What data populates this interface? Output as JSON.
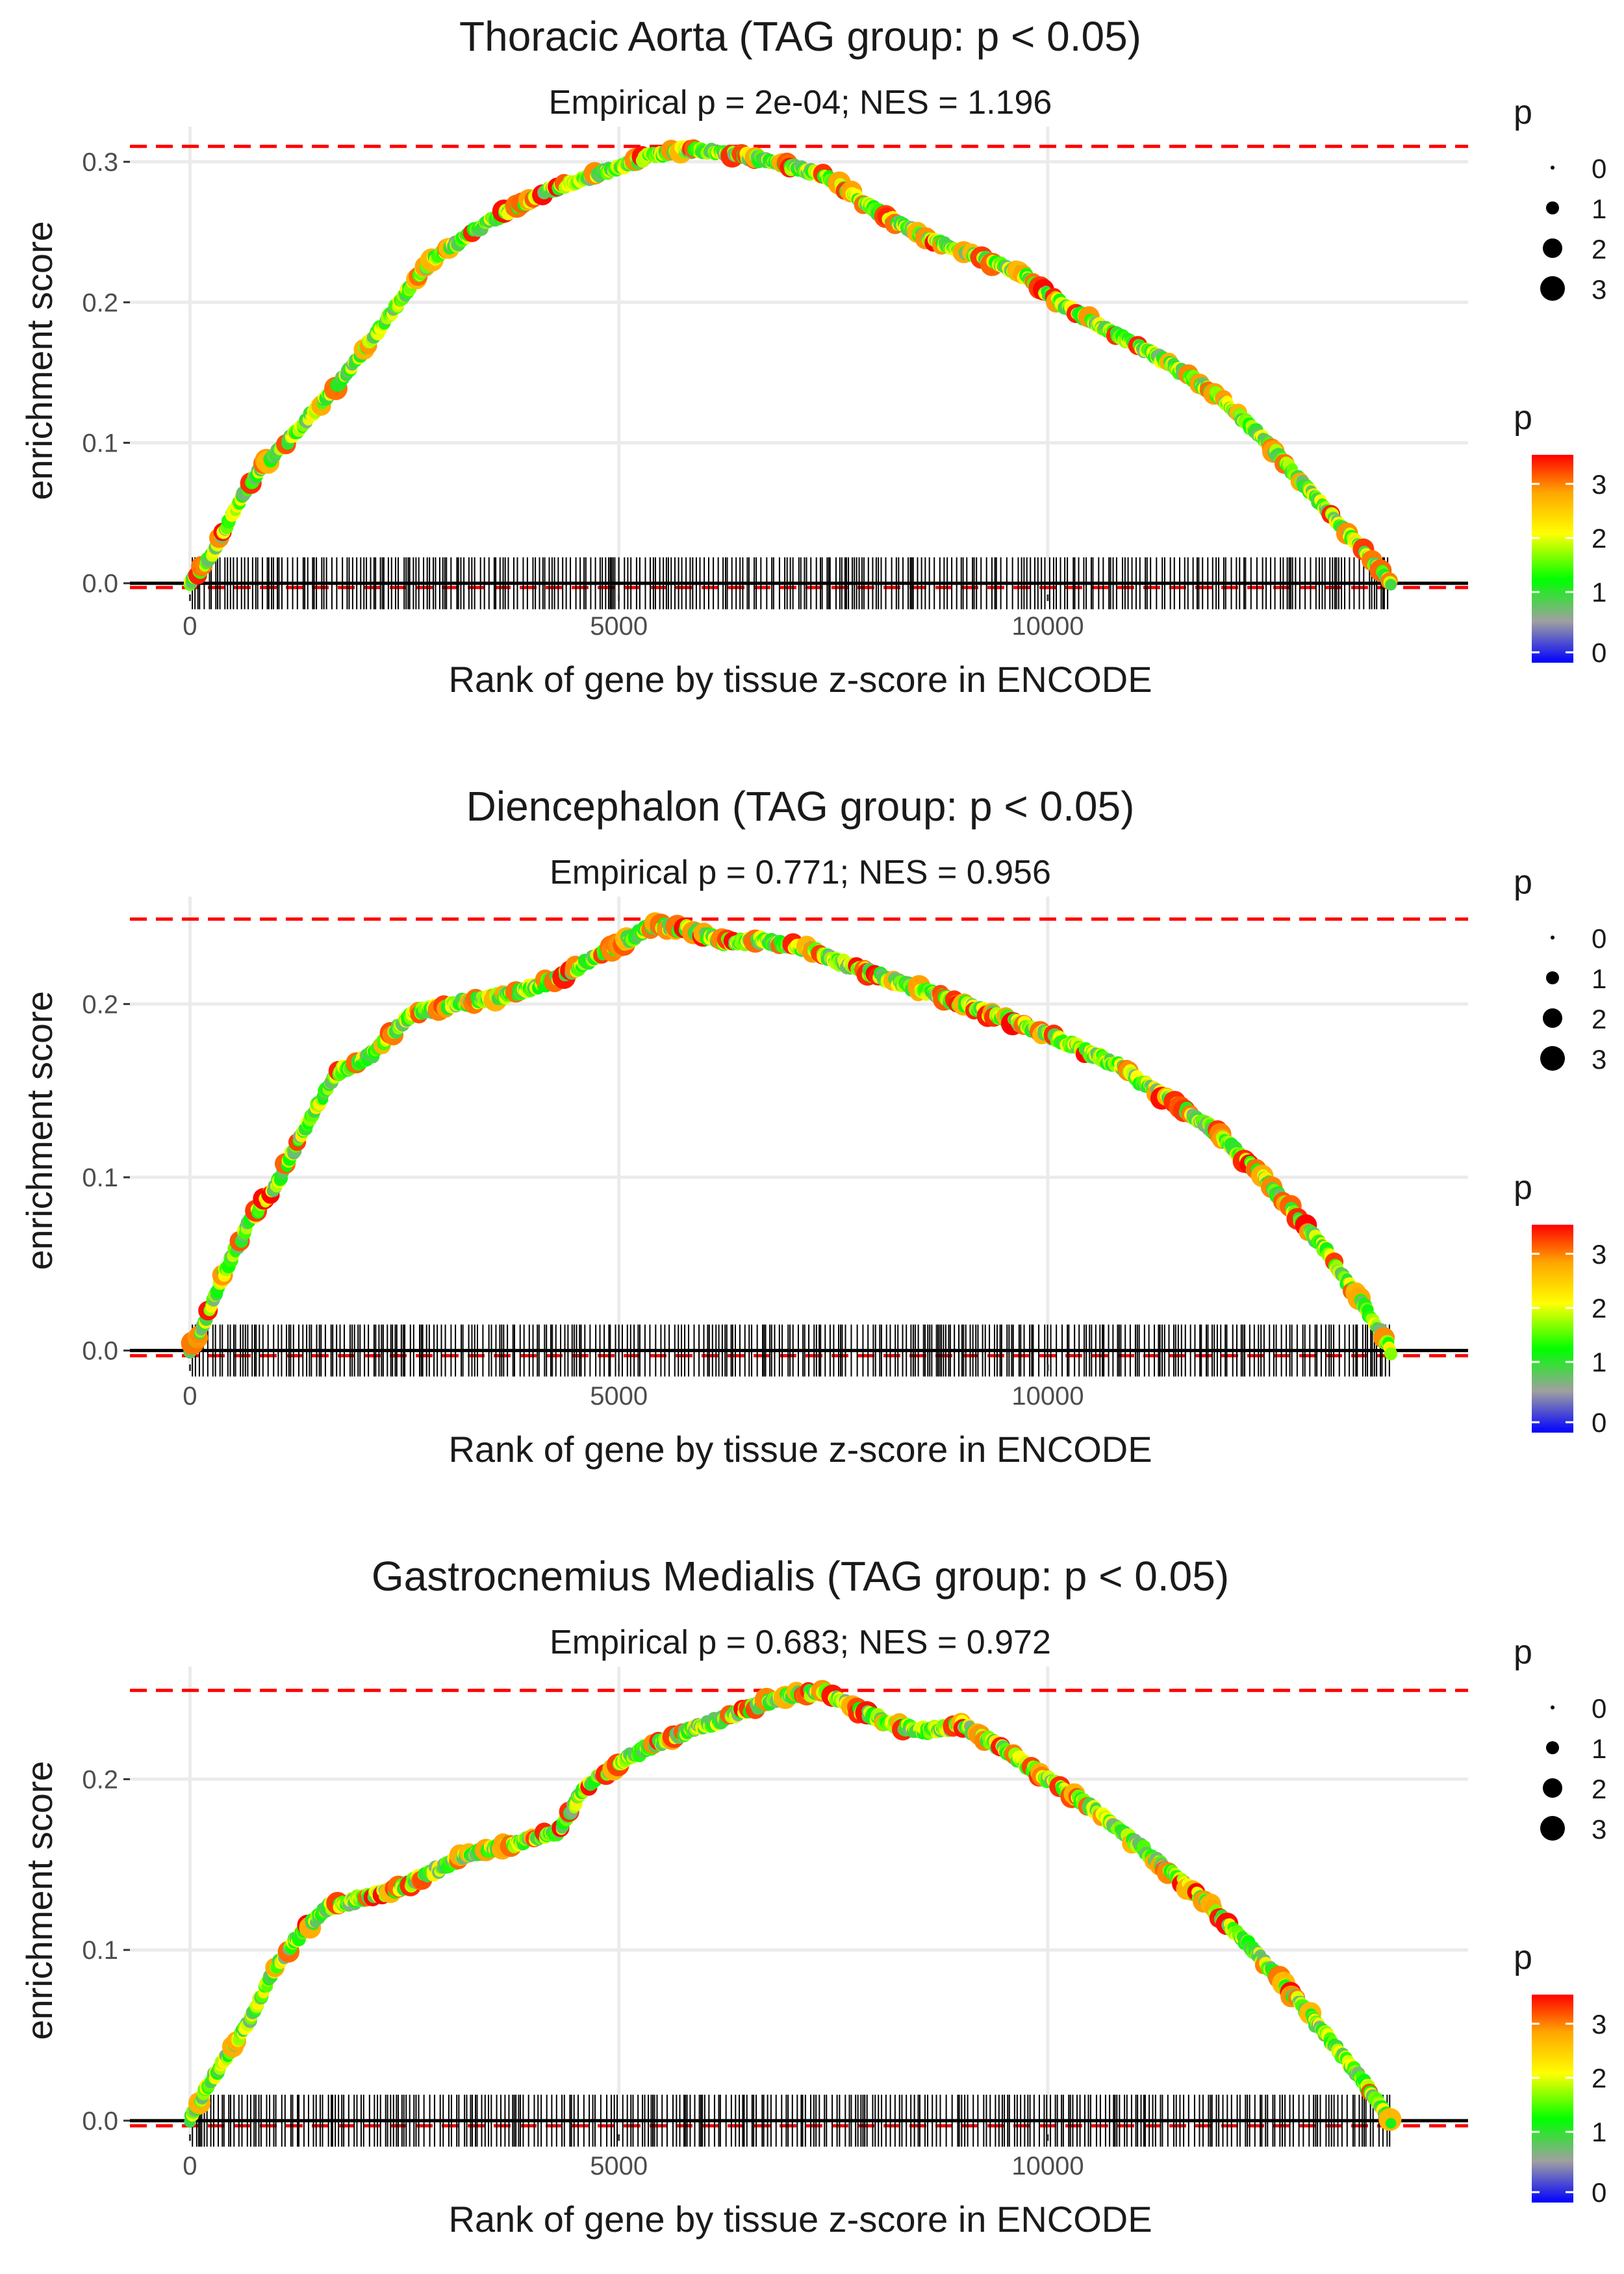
{
  "chart_data": [
    {
      "type": "line",
      "title": "Thoracic Aorta (TAG group: p < 0.05)",
      "subtitle": "Empirical p = 2e-04; NES = 1.196",
      "xlabel": "Rank of gene by tissue z-score in ENCODE",
      "ylabel": "enrichment score",
      "xlim": [
        -700,
        14900
      ],
      "ylim": [
        -0.008,
        0.325
      ],
      "x_ticks": [
        0,
        5000,
        10000
      ],
      "x_tick_labels": [
        "0",
        "5000",
        "10000"
      ],
      "y_ticks": [
        0.0,
        0.1,
        0.2,
        0.3
      ],
      "y_tick_labels": [
        "0.0",
        "0.1",
        "0.2",
        "0.3"
      ],
      "max_es": 0.311,
      "min_es": -0.003,
      "gene_set_size": 14000,
      "curve": {
        "x": [
          0,
          250,
          500,
          800,
          1200,
          1700,
          2200,
          2800,
          3500,
          4200,
          4800,
          5400,
          5800,
          6300,
          6800,
          7400,
          8000,
          8600,
          9200,
          9700,
          10200,
          10800,
          11400,
          12000,
          12500,
          13000,
          13500,
          14000
        ],
        "y": [
          0.0,
          0.02,
          0.05,
          0.08,
          0.105,
          0.14,
          0.18,
          0.23,
          0.258,
          0.28,
          0.292,
          0.305,
          0.309,
          0.306,
          0.3,
          0.29,
          0.265,
          0.245,
          0.232,
          0.22,
          0.197,
          0.177,
          0.157,
          0.133,
          0.103,
          0.07,
          0.035,
          0.0
        ]
      },
      "hits_seed": 11,
      "size_legend": {
        "title": "p",
        "labels": [
          "0",
          "1",
          "2",
          "3"
        ]
      },
      "color_legend": {
        "title": "p",
        "labels": [
          "3",
          "2",
          "1",
          "0"
        ]
      }
    },
    {
      "type": "line",
      "title": "Diencephalon (TAG group: p < 0.05)",
      "subtitle": "Empirical p = 0.771; NES = 0.956",
      "xlabel": "Rank of gene by tissue z-score in ENCODE",
      "ylabel": "enrichment score",
      "xlim": [
        -700,
        14900
      ],
      "ylim": [
        -0.008,
        0.262
      ],
      "x_ticks": [
        0,
        5000,
        10000
      ],
      "x_tick_labels": [
        "0",
        "5000",
        "10000"
      ],
      "y_ticks": [
        0.0,
        0.1,
        0.2
      ],
      "y_tick_labels": [
        "0.0",
        "0.1",
        "0.2"
      ],
      "max_es": 0.249,
      "min_es": -0.003,
      "gene_set_size": 14000,
      "curve": {
        "x": [
          0,
          200,
          400,
          700,
          1000,
          1300,
          1700,
          2100,
          2600,
          3100,
          3700,
          4300,
          4900,
          5400,
          5800,
          6300,
          6600,
          7200,
          7800,
          8400,
          9000,
          9600,
          10200,
          10800,
          11400,
          12000,
          12600,
          13200,
          13700,
          14000
        ],
        "y": [
          0.0,
          0.02,
          0.045,
          0.075,
          0.095,
          0.125,
          0.16,
          0.17,
          0.195,
          0.2,
          0.205,
          0.215,
          0.232,
          0.245,
          0.243,
          0.235,
          0.237,
          0.232,
          0.22,
          0.21,
          0.2,
          0.19,
          0.178,
          0.165,
          0.145,
          0.125,
          0.095,
          0.06,
          0.025,
          0.0
        ]
      },
      "hits_seed": 23,
      "size_legend": {
        "title": "p",
        "labels": [
          "0",
          "1",
          "2",
          "3"
        ]
      },
      "color_legend": {
        "title": "p",
        "labels": [
          "3",
          "2",
          "1",
          "0"
        ]
      }
    },
    {
      "type": "line",
      "title": "Gastrocnemius Medialis (TAG group: p < 0.05)",
      "subtitle": "Empirical p = 0.683; NES = 0.972",
      "xlabel": "Rank of gene by tissue z-score in ENCODE",
      "ylabel": "enrichment score",
      "xlim": [
        -700,
        14900
      ],
      "ylim": [
        -0.008,
        0.266
      ],
      "x_ticks": [
        0,
        5000,
        10000
      ],
      "x_tick_labels": [
        "0",
        "5000",
        "10000"
      ],
      "y_ticks": [
        0.0,
        0.1,
        0.2
      ],
      "y_tick_labels": [
        "0.0",
        "0.1",
        "0.2"
      ],
      "max_es": 0.252,
      "min_es": -0.003,
      "gene_set_size": 14000,
      "curve": {
        "x": [
          0,
          200,
          400,
          700,
          1000,
          1300,
          1600,
          2000,
          2400,
          2800,
          3200,
          3600,
          4000,
          4300,
          4600,
          5000,
          5400,
          5800,
          6200,
          6700,
          7000,
          7400,
          7800,
          8200,
          8600,
          9000,
          9400,
          10000,
          10600,
          11200,
          11800,
          12400,
          13000,
          13600,
          14000
        ],
        "y": [
          0.0,
          0.02,
          0.035,
          0.06,
          0.09,
          0.11,
          0.125,
          0.13,
          0.135,
          0.145,
          0.155,
          0.16,
          0.165,
          0.17,
          0.195,
          0.21,
          0.22,
          0.228,
          0.235,
          0.245,
          0.25,
          0.251,
          0.24,
          0.232,
          0.228,
          0.232,
          0.22,
          0.2,
          0.18,
          0.155,
          0.13,
          0.1,
          0.065,
          0.028,
          0.0
        ]
      },
      "hits_seed": 37,
      "size_legend": {
        "title": "p",
        "labels": [
          "0",
          "1",
          "2",
          "3"
        ]
      },
      "color_legend": {
        "title": "p",
        "labels": [
          "3",
          "2",
          "1",
          "0"
        ]
      }
    }
  ]
}
